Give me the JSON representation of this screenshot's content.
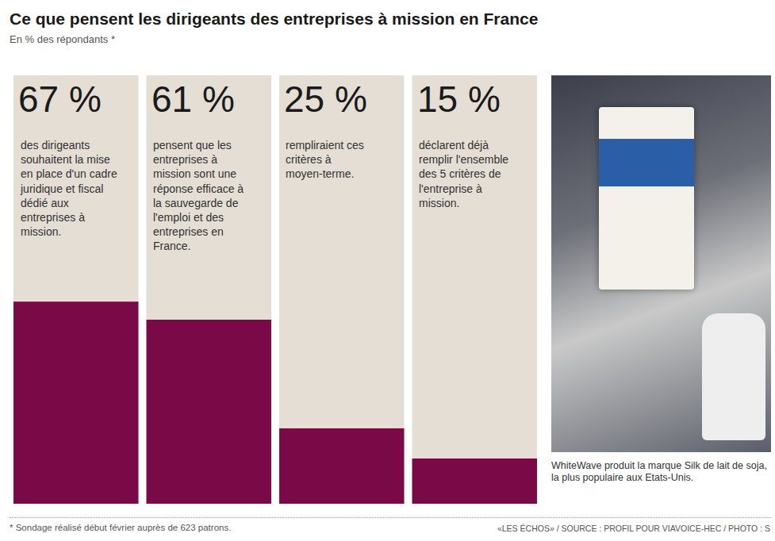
{
  "chart_data": {
    "type": "bar",
    "title": "Ce que pensent les dirigeants des entreprises à mission en France",
    "subtitle": "En % des répondants *",
    "categories": [
      null,
      null,
      null,
      null
    ],
    "values": [
      67,
      61,
      25,
      15
    ],
    "value_labels": [
      "67 %",
      "61 %",
      "25 %",
      "15 %"
    ],
    "data_labels": true,
    "descriptions": [
      "des dirigeants souhaitent la mise en place d'un cadre juridique et fiscal dédié aux entreprises à mission.",
      "pensent que les entreprises à mission sont une réponse efficace à la sauvegarde de l'emploi et des entreprises en France.",
      "rempliraient ces critères à moyen-terme.",
      "déclarent déjà remplir l'ensemble des 5 critères de l'entreprise à mission."
    ],
    "color": "#7a0a47",
    "ylim": [
      0,
      142
    ],
    "tick_labels": false,
    "grid": false,
    "photo_caption": "WhiteWave produit la marque Silk de lait de soja, la plus populaire aux Etats-Unis.",
    "footnote": "* Sondage réalisé début février auprès de 623 patrons.",
    "source": "«LES ÉCHOS» / SOURCE : PROFIL POUR VIAVOICE-HEC / PHOTO : S"
  }
}
